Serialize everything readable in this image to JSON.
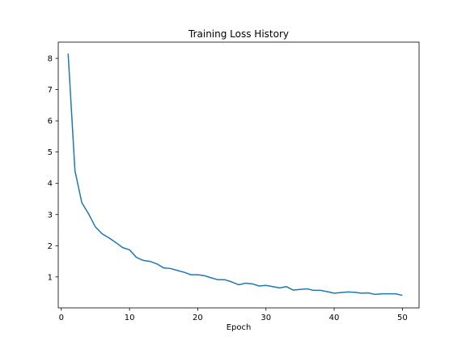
{
  "chart_data": {
    "type": "line",
    "title": "Training Loss History",
    "xlabel": "Epoch",
    "ylabel": "",
    "xlim": [
      -0.45,
      52.45
    ],
    "ylim": [
      0.01,
      8.52
    ],
    "xticks": [
      0,
      10,
      20,
      30,
      40,
      50
    ],
    "yticks": [
      1,
      2,
      3,
      4,
      5,
      6,
      7,
      8
    ],
    "grid": false,
    "legend": "none",
    "series": [
      {
        "color": "#1f77b4",
        "x": [
          1,
          2,
          3,
          4,
          5,
          6,
          7,
          8,
          9,
          10,
          11,
          12,
          13,
          14,
          15,
          16,
          17,
          18,
          19,
          20,
          21,
          22,
          23,
          24,
          25,
          26,
          27,
          28,
          29,
          30,
          31,
          32,
          33,
          34,
          35,
          36,
          37,
          38,
          39,
          40,
          41,
          42,
          43,
          44,
          45,
          46,
          47,
          48,
          49,
          50
        ],
        "values": [
          8.15,
          4.4,
          3.38,
          3.02,
          2.6,
          2.38,
          2.25,
          2.1,
          1.94,
          1.87,
          1.63,
          1.53,
          1.5,
          1.42,
          1.29,
          1.27,
          1.21,
          1.15,
          1.07,
          1.07,
          1.04,
          0.97,
          0.91,
          0.91,
          0.84,
          0.75,
          0.8,
          0.78,
          0.71,
          0.73,
          0.69,
          0.65,
          0.69,
          0.58,
          0.6,
          0.62,
          0.57,
          0.57,
          0.53,
          0.48,
          0.5,
          0.52,
          0.51,
          0.48,
          0.49,
          0.44,
          0.46,
          0.46,
          0.46,
          0.41
        ]
      }
    ]
  }
}
